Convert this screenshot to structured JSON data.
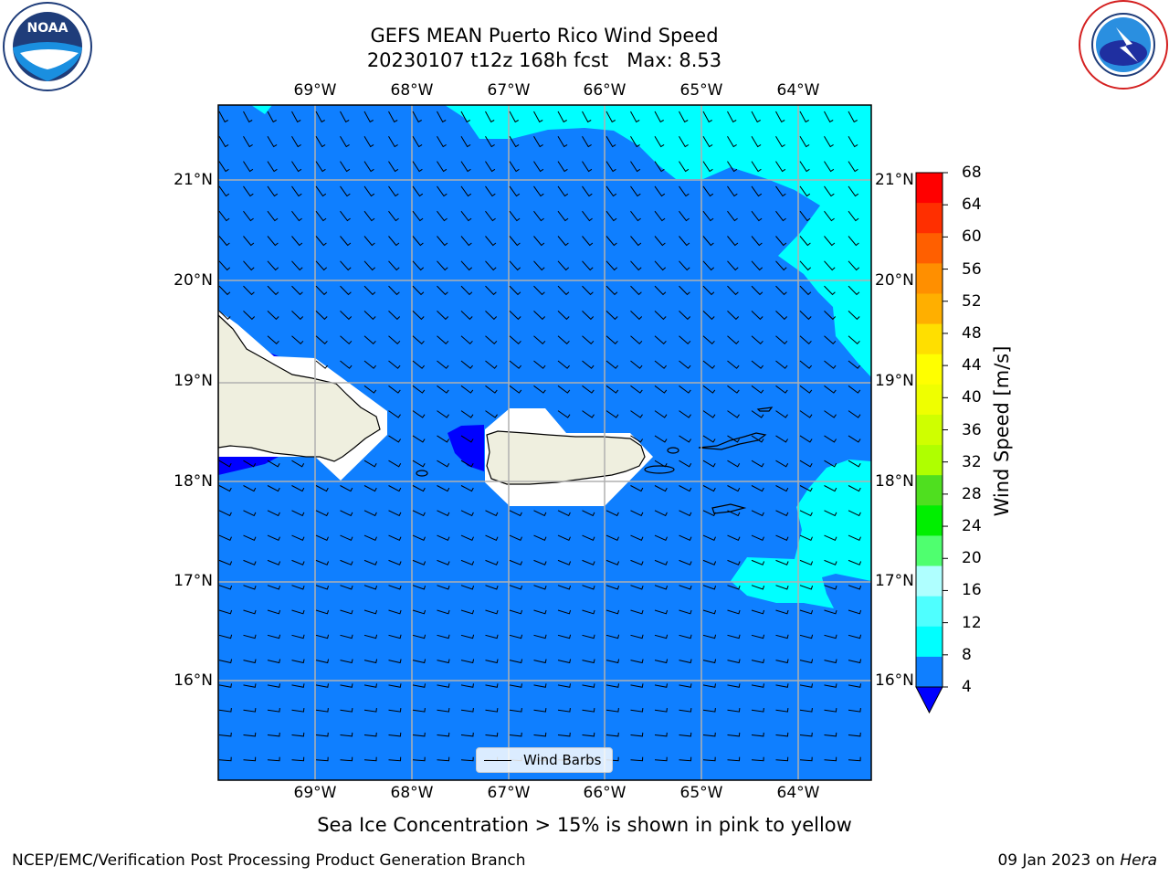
{
  "header": {
    "title_line1": "GEFS MEAN Puerto Rico Wind Speed",
    "title_line2": "20230107 t12z 168h fcst   Max: 8.53"
  },
  "logos": {
    "noaa_text": "NOAA",
    "noaa_ring_text": "NATIONAL OCEANIC AND ATMOSPHERIC ADMINISTRATION · U.S. DEPARTMENT OF COMMERCE",
    "nws_ring_text": "NATIONAL WEATHER SERVICE"
  },
  "map": {
    "lon_labels": [
      "69°W",
      "68°W",
      "67°W",
      "66°W",
      "65°W",
      "64°W"
    ],
    "lat_labels": [
      "21°N",
      "20°N",
      "19°N",
      "18°N",
      "17°N",
      "16°N"
    ],
    "legend_label": "Wind Barbs"
  },
  "colorbar": {
    "label": "Wind Speed [m/s]",
    "ticks": [
      "68",
      "64",
      "60",
      "56",
      "52",
      "48",
      "44",
      "40",
      "36",
      "32",
      "28",
      "24",
      "20",
      "16",
      "12",
      "8",
      "4"
    ],
    "colors": [
      "#ff0000",
      "#ff2f00",
      "#ff5f00",
      "#ff8f00",
      "#ffaf00",
      "#ffdf00",
      "#ffff00",
      "#efff00",
      "#cfff00",
      "#afff00",
      "#4fdf1f",
      "#00ef00",
      "#4fff6f",
      "#afffff",
      "#4fffff",
      "#00ffff",
      "#0f7fff"
    ],
    "extend_min_color": "#0000ff"
  },
  "footer": {
    "note": "Sea Ice Concentration > 15% is shown in pink to yellow",
    "left": "NCEP/EMC/Verification Post Processing Product Generation Branch",
    "right_prefix": "09 Jan 2023 on ",
    "right_host": "Hera"
  },
  "colors": {
    "ocean_low": "#0f7fff",
    "ocean_mid": "#00ffff",
    "land": "#efefdf",
    "calm": "#0000ff"
  }
}
